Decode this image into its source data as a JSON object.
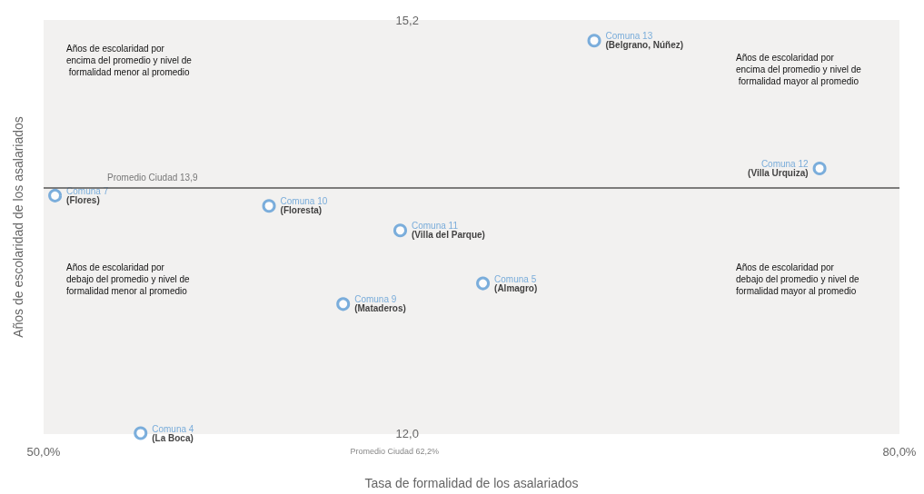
{
  "chart_data": {
    "type": "scatter",
    "xlabel": "Tasa de formalidad de los asalariados",
    "ylabel": "Años de escolaridad de los asalariados",
    "x": [
      50.4,
      57.9,
      62.5,
      60.5,
      65.4,
      53.4,
      69.3,
      77.2
    ],
    "series": [
      {
        "color": "#5b9bd5",
        "values": [
          13.84,
          13.76,
          13.57,
          13.0,
          13.16,
          12.0,
          15.04,
          14.05
        ],
        "value_labels": [
          "Comuna 7 (Flores)",
          "Comuna 10 (Floresta)",
          "Comuna 11 (Villa del Parque)",
          "Comuna 9 (Mataderos)",
          "Comuna 5 (Almagro)",
          "Comuna 4 (La Boca)",
          "Comuna 13 (Belgrano, Núñez)",
          "Comuna 12 (Villa Urquiza)"
        ]
      }
    ],
    "marker": "circle",
    "xlim": [
      50,
      80
    ],
    "xticks": [
      {
        "value": 50,
        "label": "50,0%"
      },
      {
        "value": 80,
        "label": "80,0%"
      }
    ],
    "ylim": [
      12,
      15.2
    ],
    "yticks": [
      {
        "value": 12,
        "label": "12,0"
      },
      {
        "value": 15.2,
        "label": "15,2"
      }
    ],
    "ref_lines": [
      {
        "axis": "y",
        "value": 13.9,
        "label": "Promedio Ciudad 13,9",
        "color": "#555555"
      }
    ],
    "annotations": [
      "Años de escolaridad por encima del promedio y nivel de formalidad menor al promedio",
      "Años de escolaridad por encima del promedio y nivel de formalidad mayor al promedio",
      "Años de escolaridad por debajo del promedio y nivel de formalidad menor al promedio",
      "Años de escolaridad por debajo del promedio y nivel de formalidad mayor al promedio",
      "Promedio Ciudad 62,2%"
    ],
    "grid": false
  }
}
